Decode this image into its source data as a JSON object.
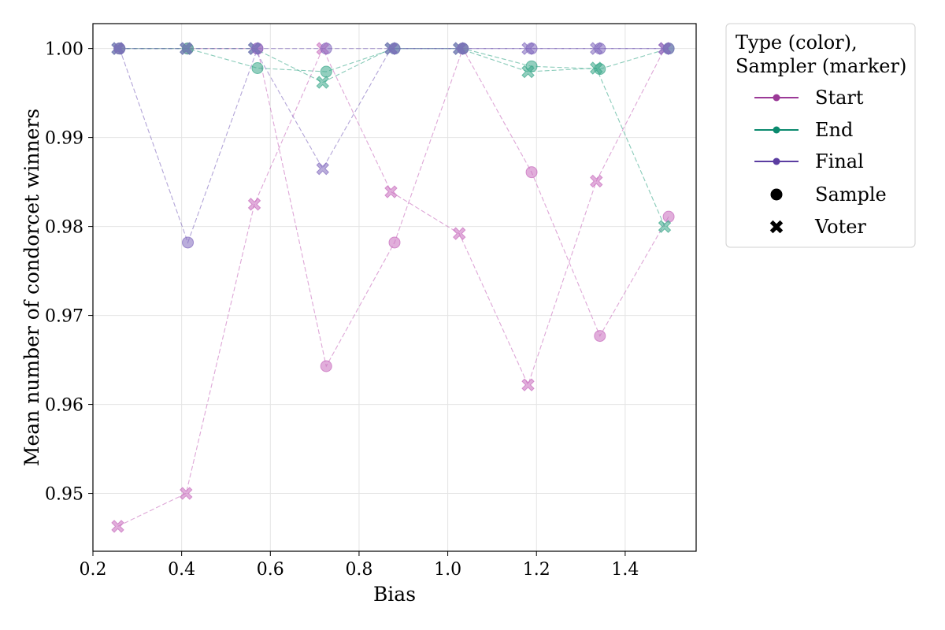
{
  "chart_data": {
    "type": "scatter",
    "xlabel": "Bias",
    "ylabel": "Mean number of condorcet winners",
    "xlim": [
      0.2,
      1.56
    ],
    "ylim": [
      0.9435,
      1.0028
    ],
    "xticks": [
      0.2,
      0.4,
      0.6,
      0.8,
      1.0,
      1.2,
      1.4
    ],
    "xtick_labels": [
      "0.2",
      "0.4",
      "0.6",
      "0.8",
      "1.0",
      "1.2",
      "1.4"
    ],
    "yticks": [
      0.95,
      0.96,
      0.97,
      0.98,
      0.99,
      1.0
    ],
    "ytick_labels": [
      "0.95",
      "0.96",
      "0.97",
      "0.98",
      "0.99",
      "1.00"
    ],
    "grid": true,
    "legend": {
      "title_line1": "Type (color),",
      "title_line2": "Sampler (marker)",
      "placement": "outside-top-right",
      "entries": [
        {
          "label": "Start",
          "kind": "type",
          "color": "#9b3a97"
        },
        {
          "label": "End",
          "kind": "type",
          "color": "#0b8a6e"
        },
        {
          "label": "Final",
          "kind": "type",
          "color": "#5b3da1"
        },
        {
          "label": "Sample",
          "kind": "marker",
          "marker": "circle"
        },
        {
          "label": "Voter",
          "kind": "marker",
          "marker": "x"
        }
      ]
    },
    "series": [
      {
        "type": "Start",
        "sampler": "Sample",
        "color": "#c86cbd",
        "x": [
          0.26,
          0.414,
          0.571,
          0.726,
          0.88,
          1.034,
          1.189,
          1.343,
          1.498
        ],
        "y": [
          1.0,
          1.0,
          1.0,
          0.9643,
          0.9782,
          1.0,
          0.9861,
          0.9677,
          0.9811
        ]
      },
      {
        "type": "Start",
        "sampler": "Voter",
        "color": "#c86cbd",
        "x": [
          0.256,
          0.41,
          0.564,
          0.718,
          0.872,
          1.026,
          1.181,
          1.335,
          1.489
        ],
        "y": [
          0.9463,
          0.95,
          0.9825,
          1.0,
          0.9839,
          0.9792,
          0.9622,
          0.9851,
          1.0
        ]
      },
      {
        "type": "End",
        "sampler": "Sample",
        "color": "#3aa88a",
        "x": [
          0.26,
          0.414,
          0.571,
          0.726,
          0.88,
          1.034,
          1.189,
          1.343,
          1.498
        ],
        "y": [
          1.0,
          1.0,
          0.9978,
          0.9974,
          1.0,
          1.0,
          0.998,
          0.9977,
          1.0
        ]
      },
      {
        "type": "End",
        "sampler": "Voter",
        "color": "#3aa88a",
        "x": [
          0.256,
          0.41,
          0.564,
          0.718,
          0.872,
          1.026,
          1.181,
          1.335,
          1.489
        ],
        "y": [
          1.0,
          1.0,
          1.0,
          0.9962,
          1.0,
          1.0,
          0.9974,
          0.9978,
          0.98
        ]
      },
      {
        "type": "Final",
        "sampler": "Sample",
        "color": "#8169be",
        "x": [
          0.26,
          0.414,
          0.571,
          0.726,
          0.88,
          1.034,
          1.189,
          1.343,
          1.498
        ],
        "y": [
          1.0,
          0.9782,
          1.0,
          1.0,
          1.0,
          1.0,
          1.0,
          1.0,
          1.0
        ]
      },
      {
        "type": "Final",
        "sampler": "Voter",
        "color": "#8169be",
        "x": [
          0.256,
          0.41,
          0.564,
          0.718,
          0.872,
          1.026,
          1.181,
          1.335,
          1.489
        ],
        "y": [
          1.0,
          1.0,
          1.0,
          0.9865,
          1.0,
          1.0,
          1.0,
          1.0,
          1.0
        ]
      }
    ]
  }
}
